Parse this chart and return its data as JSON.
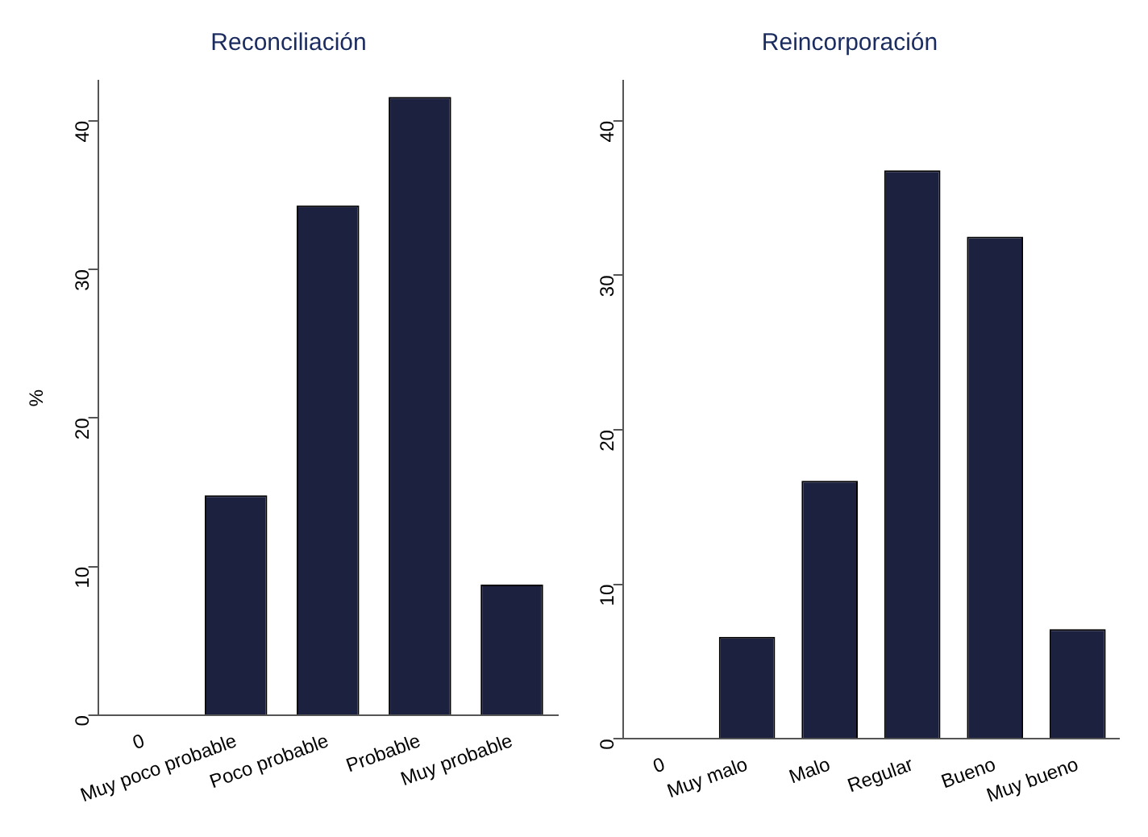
{
  "chart_data": [
    {
      "type": "bar",
      "title": "Reconciliación",
      "ylabel": "%",
      "categories": [
        "0",
        "Muy poco probable",
        "Poco probable",
        "Probable",
        "Muy probable"
      ],
      "values": [
        null,
        14.8,
        34.3,
        41.6,
        8.8
      ],
      "color": "#1c2140",
      "ylim": [
        0,
        42.7
      ],
      "yticks": [
        0,
        10,
        20,
        30,
        40
      ],
      "grid": false,
      "legend": false
    },
    {
      "type": "bar",
      "title": "Reincorporación",
      "categories": [
        "0",
        "Muy malo",
        "Malo",
        "Regular",
        "Bueno",
        "Muy bueno"
      ],
      "values": [
        null,
        6.6,
        16.7,
        36.8,
        32.5,
        7.1
      ],
      "color": "#1c2140",
      "ylim": [
        0,
        42.6
      ],
      "yticks": [
        0,
        10,
        20,
        30,
        40
      ],
      "grid": false,
      "legend": false
    }
  ]
}
